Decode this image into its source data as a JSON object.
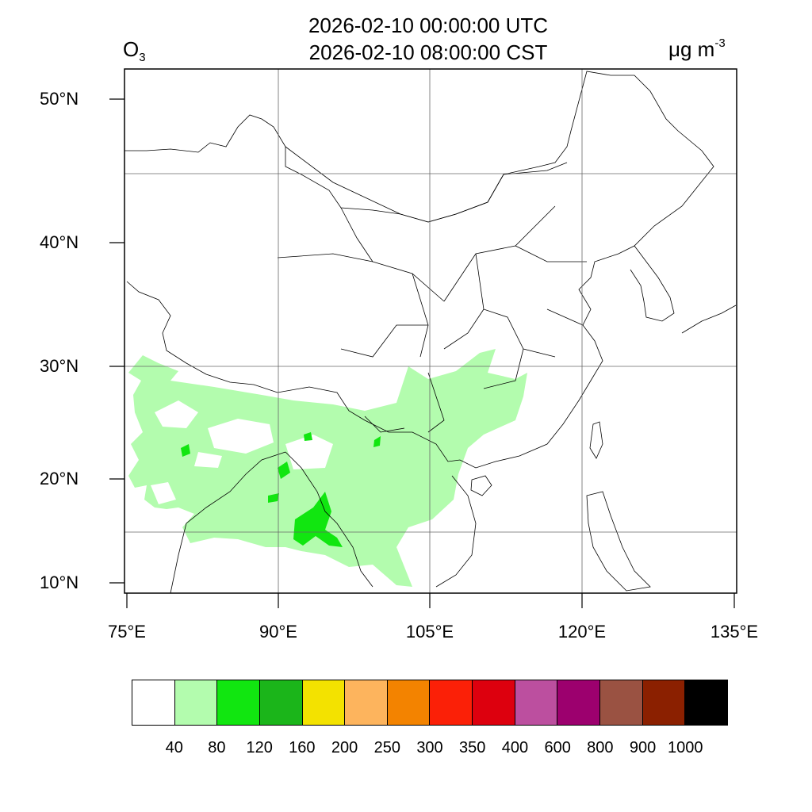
{
  "header": {
    "title_line1": "2026-02-10 00:00:00 UTC",
    "title_line2": "2026-02-10 08:00:00 CST",
    "variable": "O",
    "variable_subscript": "3",
    "unit": "μg m",
    "unit_superscript": "-3"
  },
  "axes": {
    "lat_labels": [
      "50°N",
      "40°N",
      "30°N",
      "20°N",
      "10°N"
    ],
    "lon_labels": [
      "75°E",
      "90°E",
      "105°E",
      "120°E",
      "135°E"
    ],
    "lat_range": [
      9,
      52
    ],
    "lon_range": [
      75,
      135
    ]
  },
  "colorbar": {
    "colors": [
      "#ffffff",
      "#b3fcae",
      "#11e610",
      "#1bb51a",
      "#f3e200",
      "#fdb45d",
      "#f38300",
      "#fb2007",
      "#dd000e",
      "#bc4f9f",
      "#9c006e",
      "#9a5242",
      "#8b2000",
      "#000000"
    ],
    "labels": [
      "40",
      "80",
      "120",
      "160",
      "200",
      "250",
      "300",
      "350",
      "400",
      "600",
      "800",
      "900",
      "1000"
    ]
  }
}
